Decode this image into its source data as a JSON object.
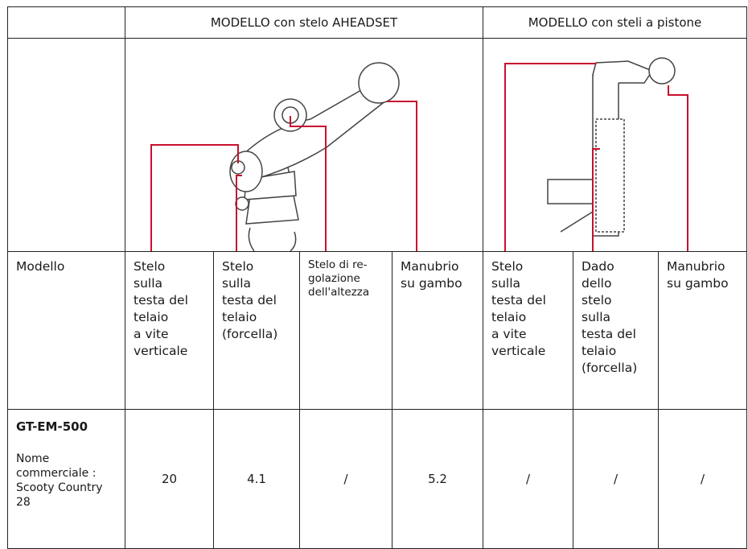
{
  "table": {
    "header": [
      "MODELLO con stelo AHEADSET",
      "MODELLO con steli a pistone"
    ],
    "label_row": [
      [
        "Modello"
      ],
      [
        "Stelo",
        "sulla",
        "testa del",
        "telaio",
        "a vite",
        "verticale"
      ],
      [
        "Stelo",
        "sulla",
        "testa del",
        "telaio",
        "(forcella)"
      ],
      [
        "Stelo di re-",
        "golazione",
        "dell'altezza"
      ],
      [
        "Manubrio",
        "su gambo"
      ],
      [
        "Stelo",
        "sulla",
        "testa del",
        "telaio",
        "a vite",
        "verticale"
      ],
      [
        "Dado",
        "dello",
        "stelo",
        "sulla",
        "testa del",
        "telaio",
        "(forcella)"
      ],
      [
        "Manubrio",
        "su gambo"
      ]
    ],
    "rows": [
      {
        "model": "GT-EM-500",
        "note": [
          "Nome",
          "commerciale :",
          "Scooty Country",
          "28"
        ],
        "values": [
          "20",
          "4.1",
          "/",
          "5.2",
          "/",
          "/",
          "/"
        ]
      }
    ]
  }
}
